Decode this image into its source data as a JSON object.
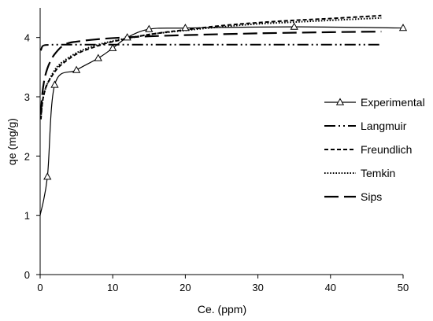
{
  "chart_data": {
    "type": "line",
    "xlabel": "Ce. (ppm)",
    "ylabel": "qe (mg/g)",
    "xlim": [
      0,
      50
    ],
    "ylim": [
      0,
      4.5
    ],
    "xticks": [
      0,
      10,
      20,
      30,
      40,
      50
    ],
    "yticks": [
      0,
      1,
      2,
      3,
      4
    ],
    "grid": false,
    "legend_position": "right",
    "series": [
      {
        "name": "Experimental",
        "style": "solid-triangle-markers",
        "color": "#000000",
        "x": [
          0,
          1,
          2,
          5,
          8,
          10,
          12,
          15,
          20,
          35,
          50
        ],
        "y": [
          1.0,
          1.65,
          3.2,
          3.45,
          3.65,
          3.82,
          4.0,
          4.14,
          4.16,
          4.18,
          4.16
        ],
        "markers": true
      },
      {
        "name": "Langmuir",
        "style": "dash-dot-dot",
        "color": "#000000",
        "x": [
          0.1,
          0.3,
          0.6,
          1,
          1.5,
          2,
          3,
          4,
          5,
          7,
          10,
          15,
          20,
          30,
          40,
          47
        ],
        "y": [
          3.78,
          3.85,
          3.87,
          3.875,
          3.878,
          3.88,
          3.88,
          3.88,
          3.88,
          3.88,
          3.88,
          3.88,
          3.88,
          3.88,
          3.88,
          3.88
        ],
        "markers": false
      },
      {
        "name": "Freundlich",
        "style": "short-dash",
        "color": "#000000",
        "x": [
          0.1,
          0.3,
          0.6,
          1,
          2,
          3,
          5,
          7,
          10,
          15,
          20,
          25,
          30,
          35,
          40,
          47
        ],
        "y": [
          2.62,
          2.9,
          3.08,
          3.22,
          3.42,
          3.55,
          3.72,
          3.82,
          3.93,
          4.05,
          4.13,
          4.2,
          4.25,
          4.29,
          4.32,
          4.37
        ],
        "markers": false
      },
      {
        "name": "Temkin",
        "style": "dotted",
        "color": "#000000",
        "x": [
          0.1,
          0.3,
          0.6,
          1,
          2,
          3,
          5,
          7,
          10,
          15,
          20,
          25,
          30,
          35,
          40,
          47
        ],
        "y": [
          2.65,
          2.9,
          3.08,
          3.22,
          3.45,
          3.58,
          3.74,
          3.84,
          3.94,
          4.05,
          4.12,
          4.18,
          4.23,
          4.26,
          4.29,
          4.33
        ],
        "markers": false
      },
      {
        "name": "Sips",
        "style": "long-dash",
        "color": "#000000",
        "x": [
          0.1,
          0.3,
          0.6,
          1,
          1.5,
          2,
          3,
          4,
          5,
          7,
          10,
          15,
          20,
          30,
          40,
          47
        ],
        "y": [
          2.7,
          3.05,
          3.3,
          3.48,
          3.62,
          3.72,
          3.85,
          3.91,
          3.93,
          3.96,
          3.99,
          4.02,
          4.04,
          4.07,
          4.09,
          4.1
        ],
        "markers": false
      }
    ]
  }
}
